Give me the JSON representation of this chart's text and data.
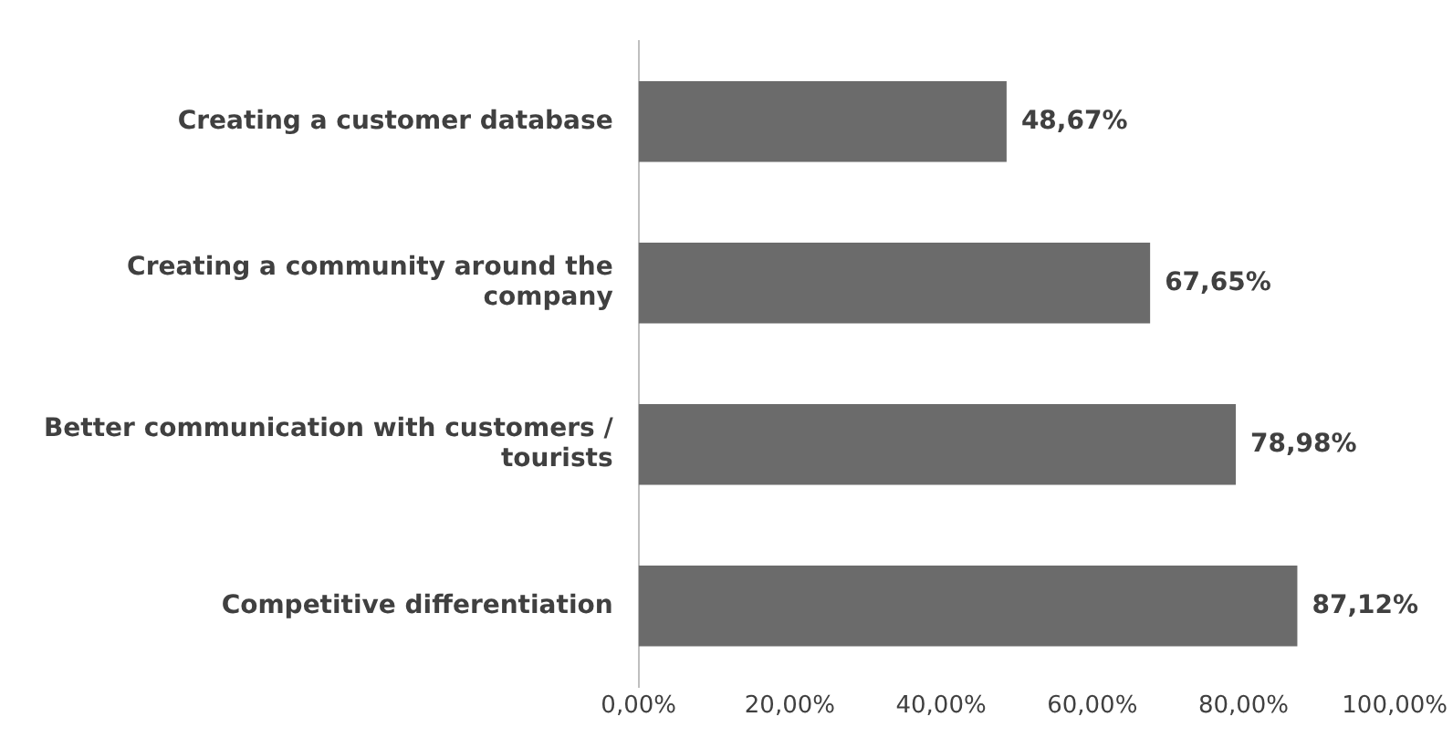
{
  "chart_data": {
    "type": "bar",
    "orientation": "horizontal",
    "categories": [
      "Creating a customer database",
      "Creating a community around the company",
      "Better communication with customers / tourists",
      "Competitive differentiation"
    ],
    "values": [
      48.67,
      67.65,
      78.98,
      87.12
    ],
    "color": "#6b6b6b",
    "value_labels": [
      "48,67%",
      "67,65%",
      "78,98%",
      "87,12%"
    ],
    "xlim": [
      0,
      100
    ],
    "xticks": [
      {
        "value": 0,
        "label": "0,00%"
      },
      {
        "value": 20,
        "label": "20,00%"
      },
      {
        "value": 40,
        "label": "40,00%"
      },
      {
        "value": 60,
        "label": "60,00%"
      },
      {
        "value": 80,
        "label": "80,00%"
      },
      {
        "value": 100,
        "label": "100,00%"
      }
    ],
    "grid": false,
    "legend": false
  }
}
